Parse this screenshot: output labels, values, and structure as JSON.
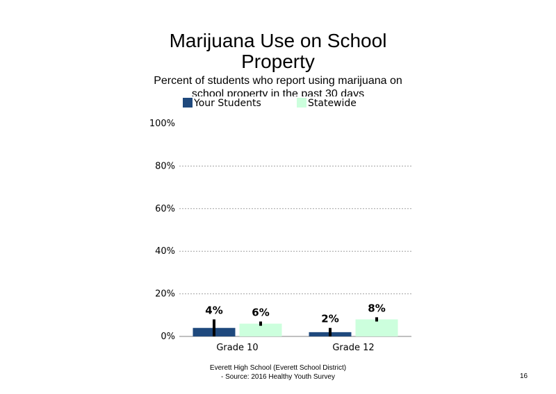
{
  "chart_data": {
    "type": "bar",
    "title": "Marijuana Use on School Property",
    "subtitle": "Percent of students who report using marijuana on school property in the past 30 days",
    "categories": [
      "Grade 10",
      "Grade 12"
    ],
    "series": [
      {
        "name": "Your Students",
        "values": [
          4,
          2
        ],
        "error": [
          [
            0,
            8
          ],
          [
            0,
            4
          ]
        ],
        "color": "#1f497d"
      },
      {
        "name": "Statewide",
        "values": [
          6,
          8
        ],
        "error": [
          [
            5,
            7
          ],
          [
            7,
            9
          ]
        ],
        "color": "#ccffdd"
      }
    ],
    "data_labels": [
      [
        "4%",
        "2%"
      ],
      [
        "6%",
        "8%"
      ]
    ],
    "ylim": [
      0,
      100
    ],
    "yticks": [
      0,
      20,
      40,
      60,
      80,
      100
    ],
    "ytick_labels": [
      "0%",
      "20%",
      "40%",
      "60%",
      "80%",
      "100%"
    ],
    "grid": true,
    "legend": "top"
  },
  "footer": {
    "line1": "Everett High School (Everett School District)",
    "line2": "- Source: 2016 Healthy Youth Survey"
  },
  "page_number": "16"
}
